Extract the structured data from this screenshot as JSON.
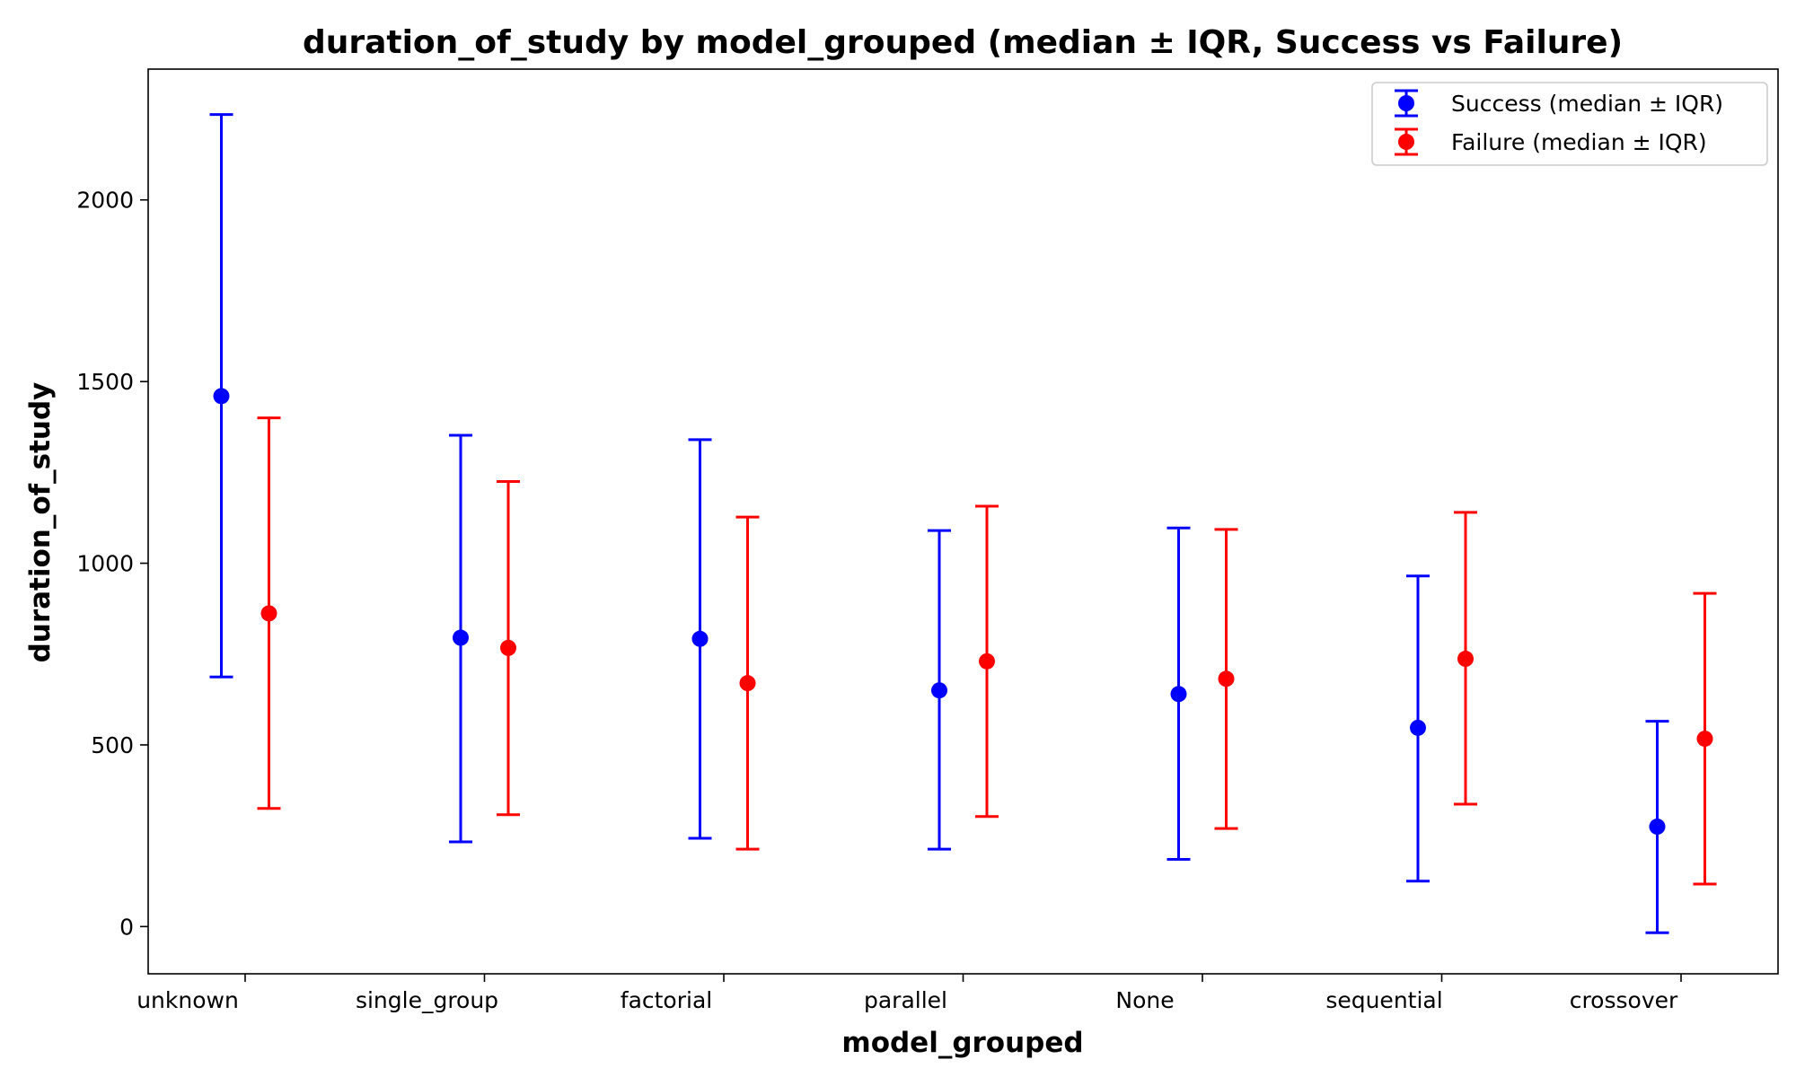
{
  "chart_data": {
    "type": "errorbar",
    "title": "duration_of_study by model_grouped (median ± IQR, Success vs Failure)",
    "xlabel": "model_grouped",
    "ylabel": "duration_of_study",
    "categories": [
      "unknown",
      "single_group",
      "factorial",
      "parallel",
      "None",
      "sequential",
      "crossover"
    ],
    "ylim": [
      -130,
      2360
    ],
    "yticks": [
      0,
      500,
      1000,
      1500,
      2000
    ],
    "legend_position": "top-right",
    "grid": false,
    "series": [
      {
        "name": "Success (median ± IQR)",
        "color": "#0000ff",
        "median": [
          1460,
          795,
          792,
          650,
          640,
          547,
          275
        ],
        "lower": [
          687,
          233,
          243,
          213,
          185,
          125,
          -17
        ],
        "upper": [
          2235,
          1352,
          1340,
          1090,
          1097,
          965,
          565
        ]
      },
      {
        "name": "Failure (median ± IQR)",
        "color": "#ff0000",
        "median": [
          862,
          767,
          670,
          730,
          682,
          737,
          517
        ],
        "lower": [
          325,
          308,
          213,
          303,
          270,
          337,
          117
        ],
        "upper": [
          1400,
          1225,
          1127,
          1157,
          1093,
          1140,
          917
        ]
      }
    ]
  }
}
